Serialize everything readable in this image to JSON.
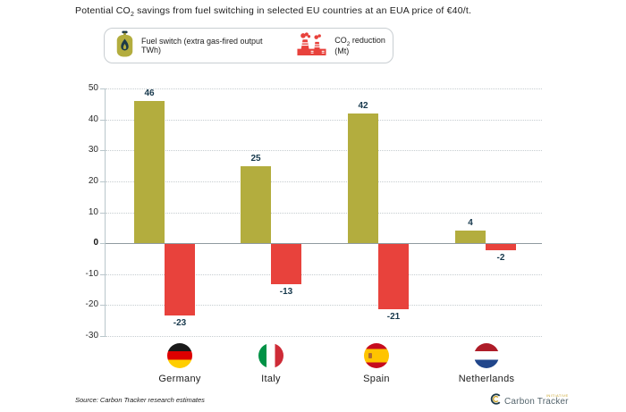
{
  "title": {
    "part1": "Potential CO",
    "sub": "2",
    "part2": " savings from fuel switching in selected EU countries at an EUA price of €40/t."
  },
  "legend": {
    "items": [
      {
        "icon": "gas-cylinder-icon",
        "label": "Fuel switch (extra gas-fired output TWh)",
        "color": "#b3ad3e"
      },
      {
        "icon": "factory-icon",
        "label_part1": "CO",
        "label_sub": "2",
        "label_part2": " reduction (Mt)",
        "color": "#e8423c"
      }
    ]
  },
  "chart_data": {
    "type": "bar",
    "title": "Potential CO2 savings from fuel switching in selected EU countries at an EUA price of €40/t.",
    "categories": [
      "Germany",
      "Italy",
      "Spain",
      "Netherlands"
    ],
    "series": [
      {
        "name": "Fuel switch (extra gas-fired output TWh)",
        "color": "#b3ad3e",
        "values": [
          46,
          25,
          42,
          4
        ]
      },
      {
        "name": "CO2 reduction (Mt)",
        "color": "#e8423c",
        "values": [
          -23,
          -13,
          -21,
          -2
        ]
      }
    ],
    "ylim": [
      -30,
      50
    ],
    "yticks": [
      50,
      40,
      30,
      20,
      10,
      0,
      -10,
      -20,
      -30
    ],
    "grid": "horizontal-dotted",
    "legend_position": "top",
    "xlabel": "",
    "ylabel": ""
  },
  "footer": {
    "source": "Source: Carbon Tracker research estimates",
    "logo_text": "Carbon Tracker",
    "logo_sub": "INITIATIVE"
  },
  "colors": {
    "bar_positive": "#b3ad3e",
    "bar_negative": "#e8423c",
    "value_label": "#16384c",
    "zero_line": "#8f9ba0",
    "gridline": "#c6cdd0",
    "axis_line": "#b9c6cb"
  }
}
